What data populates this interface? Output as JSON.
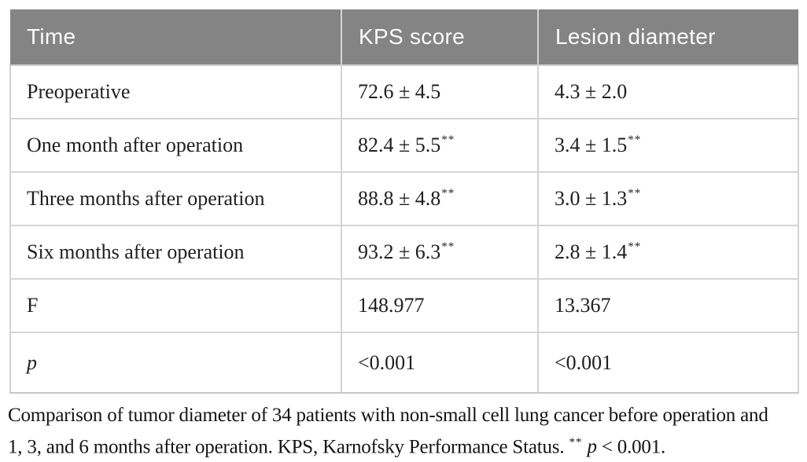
{
  "table": {
    "columns": [
      "Time",
      "KPS score",
      "Lesion diameter"
    ],
    "rows": [
      {
        "label": "Preoperative",
        "kps": "72.6 ± 4.5",
        "kps_note": "",
        "lesion": "4.3 ± 2.0",
        "lesion_note": ""
      },
      {
        "label": "One month after operation",
        "kps": "82.4 ± 5.5",
        "kps_note": "**",
        "lesion": "3.4 ± 1.5",
        "lesion_note": "**"
      },
      {
        "label": "Three months after operation",
        "kps": "88.8 ± 4.8",
        "kps_note": "**",
        "lesion": "3.0 ± 1.3",
        "lesion_note": "**"
      },
      {
        "label": "Six months after operation",
        "kps": "93.2 ± 6.3",
        "kps_note": "**",
        "lesion": "2.8 ± 1.4",
        "lesion_note": "**"
      },
      {
        "label": "F",
        "kps": "148.977",
        "kps_note": "",
        "lesion": "13.367",
        "lesion_note": ""
      },
      {
        "label": "p",
        "kps": "<0.001",
        "kps_note": "",
        "lesion": "<0.001",
        "lesion_note": ""
      }
    ]
  },
  "caption": {
    "line1": "Comparison of tumor diameter of 34 patients with non-small cell lung cancer before operation and",
    "line2_prefix": "1, 3, and 6 months after operation. KPS, Karnofsky Performance Status.",
    "line2_stars": "**",
    "line2_p": "p",
    "line2_suffix": " < 0.001."
  },
  "colors": {
    "header_bg": "#848484",
    "header_text": "#fbfbfb",
    "grid_border": "#d4d4d4",
    "body_text": "#1f1f1f"
  }
}
